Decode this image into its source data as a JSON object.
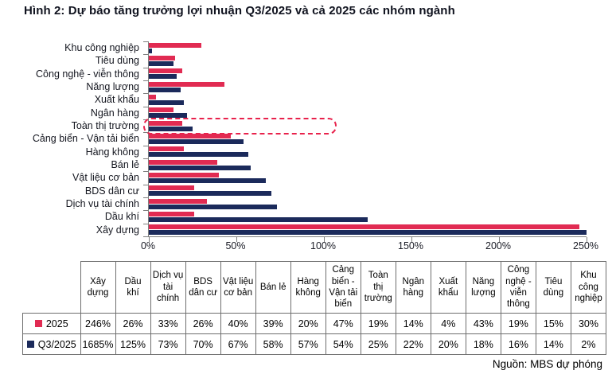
{
  "title": "Hình 2: Dự báo tăng trưởng lợi nhuận Q3/2025 và cả 2025 các nhóm ngành",
  "source": "Nguồn: MBS dự phóng",
  "colors": {
    "series_2025": "#e12b52",
    "series_q3_2025": "#1b2a5b",
    "highlight_box": "#e8224c",
    "axis": "#7f7f7f"
  },
  "chart_data": {
    "type": "bar",
    "orientation": "horizontal",
    "title": "Dự báo tăng trưởng lợi nhuận Q3/2025 và cả 2025 các nhóm ngành",
    "xlim": [
      0,
      250
    ],
    "x_tick_labels": [
      "0%",
      "50%",
      "100%",
      "150%",
      "200%",
      "250%"
    ],
    "grid": false,
    "legend_position": "table-below",
    "highlighted_category": "Toàn thị trường",
    "categories_top_to_bottom": [
      "Khu công nghiệp",
      "Tiêu dùng",
      "Công nghệ - viễn thông",
      "Năng lượng",
      "Xuất khẩu",
      "Ngân hàng",
      "Toàn thị trường",
      "Cảng biển - Vận tải biển",
      "Hàng không",
      "Bán lẻ",
      "Vật liệu cơ bản",
      "BDS dân cư",
      "Dịch vụ tài chính",
      "Dầu khí",
      "Xây dựng"
    ],
    "series": [
      {
        "name": "2025",
        "color": "#e12b52",
        "values_pct": [
          30,
          15,
          19,
          43,
          4,
          14,
          19,
          47,
          20,
          39,
          40,
          26,
          33,
          26,
          246
        ]
      },
      {
        "name": "Q3/2025",
        "color": "#1b2a5b",
        "values_pct": [
          2,
          14,
          16,
          18,
          20,
          22,
          25,
          54,
          57,
          58,
          67,
          70,
          73,
          125,
          1685
        ]
      }
    ]
  },
  "table": {
    "columns": [
      "Xây dựng",
      "Dầu khí",
      "Dịch vụ tài chính",
      "BDS dân cư",
      "Vật liệu cơ bản",
      "Bán lẻ",
      "Hàng không",
      "Cảng biển - Vận tải biển",
      "Toàn thị trường",
      "Ngân hàng",
      "Xuất khẩu",
      "Năng lượng",
      "Công nghệ - viễn thông",
      "Tiêu dùng",
      "Khu công nghiệp"
    ],
    "rows": [
      {
        "label": "2025",
        "swatch_color": "#e12b52",
        "values": [
          "246%",
          "26%",
          "33%",
          "26%",
          "40%",
          "39%",
          "20%",
          "47%",
          "19%",
          "14%",
          "4%",
          "43%",
          "19%",
          "15%",
          "30%"
        ]
      },
      {
        "label": "Q3/2025",
        "swatch_color": "#1b2a5b",
        "values": [
          "1685%",
          "125%",
          "73%",
          "70%",
          "67%",
          "58%",
          "57%",
          "54%",
          "25%",
          "22%",
          "20%",
          "18%",
          "16%",
          "14%",
          "2%"
        ]
      }
    ]
  }
}
